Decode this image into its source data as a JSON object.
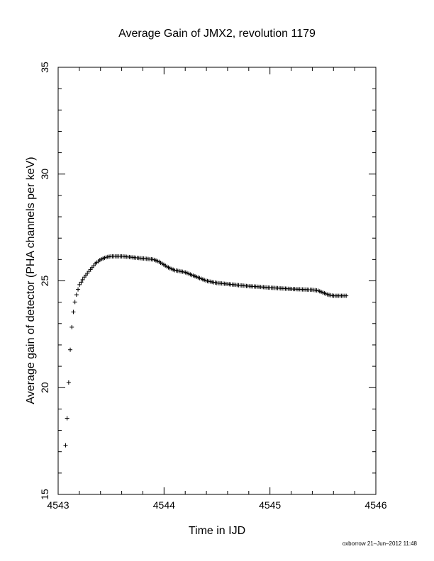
{
  "chart_data": {
    "type": "scatter",
    "title": "Average Gain of JMX2, revolution 1179",
    "xlabel": "Time in IJD",
    "ylabel": "Average gain of detector (PHA channels per keV)",
    "xlim": [
      4543,
      4546
    ],
    "ylim": [
      15,
      35
    ],
    "xticks": [
      "4543",
      "4544",
      "4545",
      "4546"
    ],
    "yticks": [
      "15",
      "20",
      "25",
      "30",
      "35"
    ],
    "marker": "plus",
    "color": "#000000",
    "x_range": [
      4543.07,
      4545.72
    ],
    "points": [
      [
        4543.07,
        17.3
      ],
      [
        4543.08,
        18.0
      ],
      [
        4543.09,
        19.2
      ],
      [
        4543.1,
        20.3
      ],
      [
        4543.11,
        21.4
      ],
      [
        4543.12,
        22.3
      ],
      [
        4543.13,
        22.9
      ],
      [
        4543.14,
        23.4
      ],
      [
        4543.15,
        23.8
      ],
      [
        4543.17,
        24.3
      ],
      [
        4543.2,
        24.8
      ],
      [
        4543.25,
        25.2
      ],
      [
        4543.3,
        25.5
      ],
      [
        4543.35,
        25.8
      ],
      [
        4543.4,
        26.0
      ],
      [
        4543.45,
        26.1
      ],
      [
        4543.5,
        26.15
      ],
      [
        4543.6,
        26.15
      ],
      [
        4543.7,
        26.1
      ],
      [
        4543.8,
        26.05
      ],
      [
        4543.9,
        26.0
      ],
      [
        4543.95,
        25.9
      ],
      [
        4544.0,
        25.75
      ],
      [
        4544.05,
        25.6
      ],
      [
        4544.1,
        25.5
      ],
      [
        4544.15,
        25.45
      ],
      [
        4544.2,
        25.4
      ],
      [
        4544.3,
        25.2
      ],
      [
        4544.4,
        25.0
      ],
      [
        4544.5,
        24.9
      ],
      [
        4544.6,
        24.85
      ],
      [
        4544.7,
        24.8
      ],
      [
        4544.8,
        24.75
      ],
      [
        4544.9,
        24.72
      ],
      [
        4545.0,
        24.68
      ],
      [
        4545.1,
        24.65
      ],
      [
        4545.2,
        24.62
      ],
      [
        4545.3,
        24.6
      ],
      [
        4545.4,
        24.58
      ],
      [
        4545.45,
        24.55
      ],
      [
        4545.5,
        24.45
      ],
      [
        4545.55,
        24.35
      ],
      [
        4545.6,
        24.3
      ],
      [
        4545.65,
        24.3
      ],
      [
        4545.72,
        24.3
      ]
    ]
  },
  "footer": "oxborrow 21–Jun–2012 11:48"
}
